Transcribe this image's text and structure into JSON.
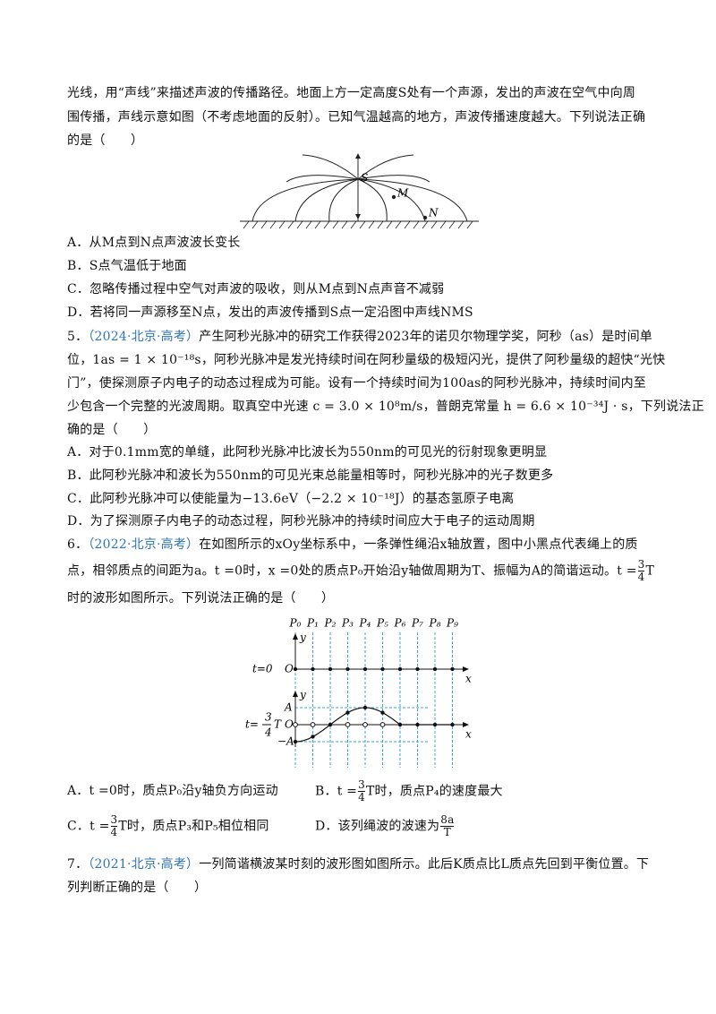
{
  "q4_tail": {
    "lines": [
      "光线，用“声线”来描述声波的传播路径。地面上方一定高度S处有一个声源，发出的声波在空气中向周",
      "围传播，声线示意如图（不考虑地面的反射）。已知气温越高的地方，声波传播速度越大。下列说法正确",
      "的是（　　）"
    ]
  },
  "figure1": {
    "source": "S",
    "point_m": "M",
    "point_n": "N"
  },
  "q4_options": [
    "A．从M点到N点声波波长变长",
    "B．S点气温低于地面",
    "C．忽略传播过程中空气对声波的吸收，则从M点到N点声音不减弱",
    "D．若将同一声源移至N点，发出的声波传播到S点一定沿图中声线NMS"
  ],
  "q5": {
    "number": "5．",
    "source": "（2024·北京·高考）",
    "lines": [
      "产生阿秒光脉冲的研究工作获得2023年的诺贝尔物理学奖，阿秒（as）是时间单",
      "位，1as = 1 × 10⁻¹⁸s，阿秒光脉冲是发光持续时间在阿秒量级的极短闪光，提供了阿秒量级的超快“光快",
      "门”，使探测原子内电子的动态过程成为可能。设有一个持续时间为100as的阿秒光脉冲，持续时间内至",
      "少包含一个完整的光波周期。取真空中光速 c = 3.0 × 10⁸m/s，普朗克常量 h = 6.6 × 10⁻³⁴J · s，下列说法正",
      "确的是（　　）"
    ],
    "options": [
      "A．对于0.1mm宽的单缝，此阿秒光脉冲比波长为550nm的可见光的衍射现象更明显",
      "B．此阿秒光脉冲和波长为550nm的可见光束总能量相等时，阿秒光脉冲的光子数更多",
      "C．此阿秒光脉冲可以使能量为−13.6eV（−2.2 × 10⁻¹⁸J）的基态氢原子电离",
      "D．为了探测原子内电子的动态过程，阿秒光脉冲的持续时间应大于电子的运动周期"
    ]
  },
  "q6": {
    "number": "6．",
    "source": "（2022·北京·高考）",
    "line1": "在如图所示的xOy坐标系中，一条弹性绳沿x轴放置，图中小黑点代表绳上的质",
    "line2": "点，相邻质点的间距为a。t =0时，x =0处的质点P₀开始沿y轴做周期为T、振幅为A的简谐运动。t =",
    "line2_num": "3",
    "line2_den": "4",
    "line2_end": "T",
    "line3": "时的波形如图所示。下列说法正确的是（　　）",
    "option_a": "A．t =0时，质点P₀沿y轴负方向运动",
    "option_b": {
      "prefix": "B．t =",
      "num": "3",
      "den": "4",
      "suffix": "T时，质点P₄的速度最大"
    },
    "option_c": {
      "prefix": "C．t =",
      "num": "3",
      "den": "4",
      "suffix": "T时，质点P₃和P₅相位相同"
    },
    "option_d": {
      "prefix": "D．该列绳波的波速为",
      "num": "8a",
      "den": "T"
    }
  },
  "figure2": {
    "points": [
      "P₀",
      "P₁",
      "P₂",
      "P₃",
      "P₄",
      "P₅",
      "P₆",
      "P₇",
      "P₈",
      "P₉"
    ],
    "y_axis": "y",
    "x_axis": "x",
    "origin": "O",
    "t0": "t=0",
    "t_prefix": "t=",
    "t_num": "3",
    "t_den": "4",
    "t_suffix": "T",
    "amp": "A",
    "neg_amp": "−A"
  },
  "q7": {
    "number": "7．",
    "source": "（2021·北京·高考）",
    "lines": [
      "一列简谐横波某时刻的波形图如图所示。此后K质点比L质点先回到平衡位置。下",
      "列判断正确的是（　　）"
    ]
  }
}
